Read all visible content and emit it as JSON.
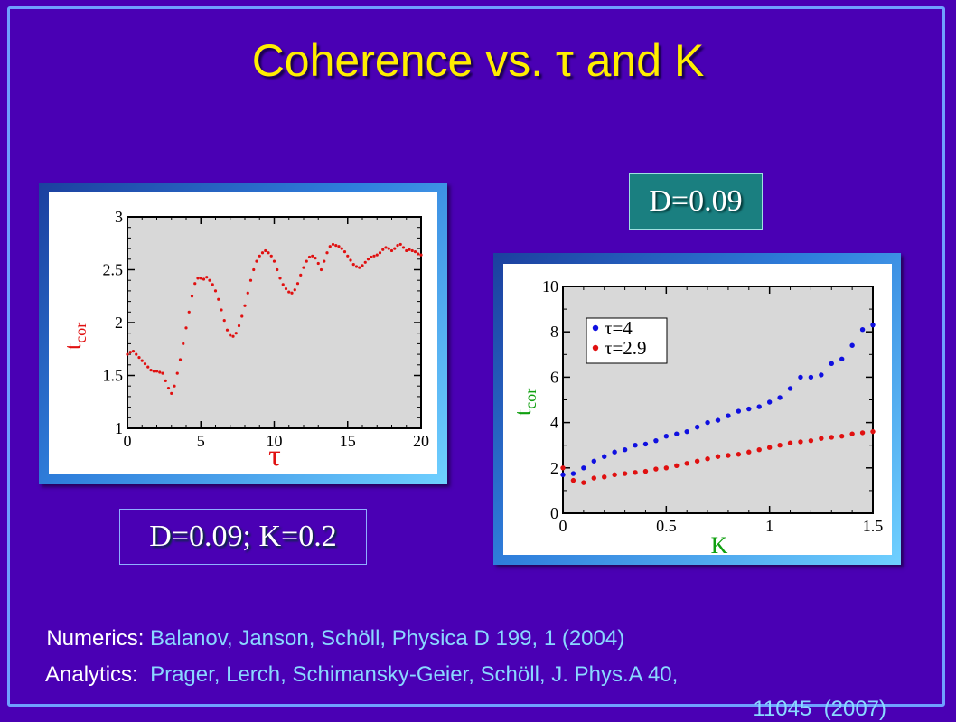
{
  "title": "Coherence vs. τ and K",
  "badges": {
    "right": "D=0.09",
    "left": "D=0.09; K=0.2"
  },
  "references": {
    "numerics_label": "Numerics:",
    "numerics_cite": "Balanov, Janson, Schöll, Physica D 199, 1 (2004)",
    "analytics_label": "Analytics:",
    "analytics_cite": "Prager, Lerch, Schimansky-Geier, Schöll, J. Phys.A 40,",
    "analytics_cite2": "11045  (2007)"
  },
  "colors": {
    "background": "#4a00b4",
    "title": "#ffee00",
    "red_series": "#e01010",
    "blue_series": "#1010e0",
    "axis_label_red": "#e01010",
    "axis_label_green": "#10a010",
    "plot_bg": "#d8d8d8"
  },
  "chart_data": [
    {
      "type": "scatter",
      "xlabel": "τ",
      "ylabel": "t",
      "ylabel_sub": "cor",
      "xlim": [
        0,
        20
      ],
      "ylim": [
        1,
        3
      ],
      "xticks": [
        0,
        5,
        10,
        15,
        20
      ],
      "xtick_labels": [
        "0",
        "5",
        "10",
        "15",
        "20"
      ],
      "yticks": [
        1,
        1.5,
        2,
        2.5,
        3
      ],
      "ytick_labels": [
        "1",
        "1.5",
        "2",
        "2.5",
        "3"
      ],
      "grid": false,
      "series": [
        {
          "color": "#e01010",
          "x": [
            0,
            0.2,
            0.4,
            0.6,
            0.8,
            1.0,
            1.2,
            1.4,
            1.6,
            1.8,
            2.0,
            2.2,
            2.4,
            2.6,
            2.8,
            3.0,
            3.2,
            3.4,
            3.6,
            3.8,
            4.0,
            4.2,
            4.4,
            4.6,
            4.8,
            5.0,
            5.2,
            5.4,
            5.6,
            5.8,
            6.0,
            6.2,
            6.4,
            6.6,
            6.8,
            7.0,
            7.2,
            7.4,
            7.6,
            7.8,
            8.0,
            8.2,
            8.4,
            8.6,
            8.8,
            9.0,
            9.2,
            9.4,
            9.6,
            9.8,
            10.0,
            10.2,
            10.4,
            10.6,
            10.8,
            11.0,
            11.2,
            11.4,
            11.6,
            11.8,
            12.0,
            12.2,
            12.4,
            12.6,
            12.8,
            13.0,
            13.2,
            13.4,
            13.6,
            13.8,
            14.0,
            14.2,
            14.4,
            14.6,
            14.8,
            15.0,
            15.2,
            15.4,
            15.6,
            15.8,
            16.0,
            16.2,
            16.4,
            16.6,
            16.8,
            17.0,
            17.2,
            17.4,
            17.6,
            17.8,
            18.0,
            18.2,
            18.4,
            18.6,
            18.8,
            19.0,
            19.2,
            19.4,
            19.6,
            19.8,
            20.0
          ],
          "y": [
            1.7,
            1.72,
            1.73,
            1.7,
            1.67,
            1.64,
            1.61,
            1.58,
            1.55,
            1.54,
            1.54,
            1.53,
            1.52,
            1.45,
            1.38,
            1.33,
            1.4,
            1.52,
            1.65,
            1.8,
            1.95,
            2.1,
            2.25,
            2.37,
            2.42,
            2.42,
            2.41,
            2.43,
            2.4,
            2.36,
            2.3,
            2.22,
            2.12,
            2.02,
            1.93,
            1.88,
            1.87,
            1.9,
            1.97,
            2.06,
            2.16,
            2.28,
            2.4,
            2.5,
            2.58,
            2.63,
            2.66,
            2.68,
            2.66,
            2.63,
            2.58,
            2.5,
            2.42,
            2.36,
            2.32,
            2.29,
            2.28,
            2.31,
            2.37,
            2.45,
            2.52,
            2.58,
            2.62,
            2.63,
            2.61,
            2.56,
            2.5,
            2.58,
            2.66,
            2.72,
            2.74,
            2.73,
            2.72,
            2.7,
            2.67,
            2.63,
            2.59,
            2.55,
            2.53,
            2.52,
            2.54,
            2.57,
            2.6,
            2.62,
            2.63,
            2.64,
            2.66,
            2.69,
            2.71,
            2.7,
            2.68,
            2.7,
            2.73,
            2.74,
            2.71,
            2.68,
            2.69,
            2.68,
            2.67,
            2.65,
            2.64
          ]
        }
      ]
    },
    {
      "type": "scatter",
      "xlabel": "K",
      "ylabel": "t",
      "ylabel_sub": "cor",
      "xlim": [
        0,
        1.5
      ],
      "ylim": [
        0,
        10
      ],
      "xticks": [
        0,
        0.5,
        1,
        1.5
      ],
      "xtick_labels": [
        "0",
        "0.5",
        "1",
        "1.5"
      ],
      "yticks": [
        0,
        2,
        4,
        6,
        8,
        10
      ],
      "ytick_labels": [
        "0",
        "2",
        "4",
        "6",
        "8",
        "10"
      ],
      "grid": false,
      "legend": "top-left",
      "series": [
        {
          "name": "τ=4",
          "color": "#1010e0",
          "x": [
            0,
            0.05,
            0.1,
            0.15,
            0.2,
            0.25,
            0.3,
            0.35,
            0.4,
            0.45,
            0.5,
            0.55,
            0.6,
            0.65,
            0.7,
            0.75,
            0.8,
            0.85,
            0.9,
            0.95,
            1.0,
            1.05,
            1.1,
            1.15,
            1.2,
            1.25,
            1.3,
            1.35,
            1.4,
            1.45,
            1.5
          ],
          "y": [
            1.7,
            1.75,
            2.0,
            2.3,
            2.5,
            2.7,
            2.8,
            3.0,
            3.05,
            3.2,
            3.4,
            3.5,
            3.6,
            3.8,
            4.0,
            4.1,
            4.3,
            4.5,
            4.6,
            4.7,
            4.9,
            5.1,
            5.5,
            6.0,
            6.0,
            6.1,
            6.6,
            6.8,
            7.4,
            8.1,
            8.3
          ]
        },
        {
          "name": "τ=2.9",
          "color": "#e01010",
          "x": [
            0,
            0.05,
            0.1,
            0.15,
            0.2,
            0.25,
            0.3,
            0.35,
            0.4,
            0.45,
            0.5,
            0.55,
            0.6,
            0.65,
            0.7,
            0.75,
            0.8,
            0.85,
            0.9,
            0.95,
            1.0,
            1.05,
            1.1,
            1.15,
            1.2,
            1.25,
            1.3,
            1.35,
            1.4,
            1.45,
            1.5
          ],
          "y": [
            2.0,
            1.45,
            1.35,
            1.55,
            1.6,
            1.7,
            1.75,
            1.8,
            1.85,
            1.95,
            2.0,
            2.1,
            2.2,
            2.3,
            2.4,
            2.5,
            2.55,
            2.6,
            2.7,
            2.8,
            2.9,
            3.0,
            3.1,
            3.15,
            3.2,
            3.3,
            3.35,
            3.4,
            3.5,
            3.55,
            3.6
          ]
        }
      ]
    }
  ]
}
